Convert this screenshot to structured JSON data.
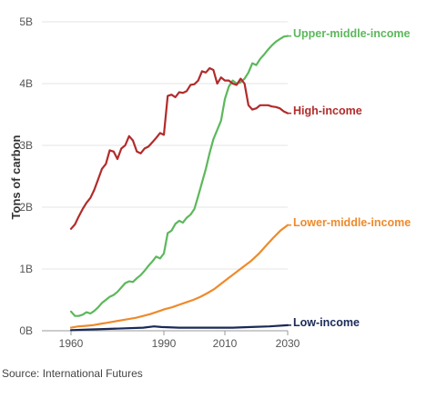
{
  "chart_data": {
    "type": "line",
    "xlim": [
      1960,
      2030
    ],
    "ylim": [
      0,
      5
    ],
    "x_ticks": [
      1960,
      1990,
      2010,
      2030
    ],
    "x_tick_labels": [
      "1960",
      "1990",
      "2010",
      "2030"
    ],
    "y_ticks": [
      0,
      1,
      2,
      3,
      4,
      5
    ],
    "y_tick_labels": [
      "0B",
      "1B",
      "2B",
      "3B",
      "4B",
      "5B"
    ],
    "ylabel": "Tons of carbon",
    "xlabel": "",
    "grid": "horizontal",
    "legend": "direct labels at line ends",
    "series": [
      {
        "name": "Upper-middle-income",
        "color": "#5cb85c",
        "points": [
          [
            1960,
            0.31
          ],
          [
            1961,
            0.24
          ],
          [
            1962,
            0.24
          ],
          [
            1963,
            0.26
          ],
          [
            1964,
            0.3
          ],
          [
            1965,
            0.28
          ],
          [
            1966,
            0.32
          ],
          [
            1967,
            0.38
          ],
          [
            1968,
            0.45
          ],
          [
            1969,
            0.5
          ],
          [
            1970,
            0.55
          ],
          [
            1971,
            0.58
          ],
          [
            1972,
            0.63
          ],
          [
            1973,
            0.7
          ],
          [
            1974,
            0.77
          ],
          [
            1975,
            0.8
          ],
          [
            1976,
            0.79
          ],
          [
            1977,
            0.85
          ],
          [
            1978,
            0.9
          ],
          [
            1979,
            0.97
          ],
          [
            1980,
            1.05
          ],
          [
            1981,
            1.12
          ],
          [
            1982,
            1.2
          ],
          [
            1983,
            1.17
          ],
          [
            1984,
            1.25
          ],
          [
            1985,
            1.58
          ],
          [
            1986,
            1.62
          ],
          [
            1987,
            1.73
          ],
          [
            1988,
            1.78
          ],
          [
            1989,
            1.75
          ],
          [
            1990,
            1.83
          ],
          [
            1991,
            1.88
          ],
          [
            1992,
            1.97
          ],
          [
            1993,
            2.18
          ],
          [
            1994,
            2.4
          ],
          [
            1995,
            2.62
          ],
          [
            1996,
            2.88
          ],
          [
            1997,
            3.1
          ],
          [
            1998,
            3.25
          ],
          [
            1999,
            3.4
          ],
          [
            2000,
            3.75
          ],
          [
            2001,
            3.95
          ],
          [
            2002,
            4.05
          ],
          [
            2003,
            4.0
          ],
          [
            2004,
            4.02
          ],
          [
            2005,
            4.08
          ],
          [
            2006,
            4.18
          ],
          [
            2007,
            4.33
          ],
          [
            2008,
            4.3
          ],
          [
            2009,
            4.4
          ],
          [
            2010,
            4.47
          ],
          [
            2011,
            4.55
          ],
          [
            2012,
            4.62
          ],
          [
            2013,
            4.68
          ],
          [
            2014,
            4.72
          ],
          [
            2015,
            4.76
          ],
          [
            2016,
            4.77
          ]
        ]
      },
      {
        "name": "High-income",
        "color": "#b22b2b",
        "points": [
          [
            1960,
            1.65
          ],
          [
            1961,
            1.72
          ],
          [
            1962,
            1.85
          ],
          [
            1963,
            1.97
          ],
          [
            1964,
            2.07
          ],
          [
            1965,
            2.15
          ],
          [
            1966,
            2.28
          ],
          [
            1967,
            2.45
          ],
          [
            1968,
            2.62
          ],
          [
            1969,
            2.7
          ],
          [
            1970,
            2.92
          ],
          [
            1971,
            2.9
          ],
          [
            1972,
            2.78
          ],
          [
            1973,
            2.95
          ],
          [
            1974,
            3.0
          ],
          [
            1975,
            3.15
          ],
          [
            1976,
            3.08
          ],
          [
            1977,
            2.9
          ],
          [
            1978,
            2.87
          ],
          [
            1979,
            2.95
          ],
          [
            1980,
            2.98
          ],
          [
            1981,
            3.05
          ],
          [
            1982,
            3.12
          ],
          [
            1983,
            3.2
          ],
          [
            1984,
            3.17
          ],
          [
            1985,
            3.8
          ],
          [
            1986,
            3.82
          ],
          [
            1987,
            3.78
          ],
          [
            1988,
            3.86
          ],
          [
            1989,
            3.85
          ],
          [
            1990,
            3.88
          ],
          [
            1991,
            3.98
          ],
          [
            1992,
            3.99
          ],
          [
            1993,
            4.05
          ],
          [
            1994,
            4.2
          ],
          [
            1995,
            4.18
          ],
          [
            1996,
            4.25
          ],
          [
            1997,
            4.22
          ],
          [
            1998,
            4.0
          ],
          [
            1999,
            4.1
          ],
          [
            2000,
            4.05
          ],
          [
            2001,
            4.05
          ],
          [
            2002,
            4.0
          ],
          [
            2003,
            3.98
          ],
          [
            2004,
            4.08
          ],
          [
            2005,
            4.0
          ],
          [
            2006,
            3.65
          ],
          [
            2007,
            3.58
          ],
          [
            2008,
            3.6
          ],
          [
            2009,
            3.65
          ],
          [
            2010,
            3.65
          ],
          [
            2011,
            3.65
          ],
          [
            2012,
            3.63
          ],
          [
            2013,
            3.62
          ],
          [
            2014,
            3.6
          ],
          [
            2015,
            3.55
          ],
          [
            2016,
            3.52
          ]
        ]
      },
      {
        "name": "Lower-middle-income",
        "color": "#ee8a2c",
        "points": [
          [
            1960,
            0.05
          ],
          [
            1962,
            0.07
          ],
          [
            1964,
            0.08
          ],
          [
            1966,
            0.09
          ],
          [
            1968,
            0.11
          ],
          [
            1970,
            0.13
          ],
          [
            1972,
            0.15
          ],
          [
            1974,
            0.17
          ],
          [
            1976,
            0.19
          ],
          [
            1978,
            0.21
          ],
          [
            1980,
            0.24
          ],
          [
            1982,
            0.27
          ],
          [
            1984,
            0.31
          ],
          [
            1986,
            0.35
          ],
          [
            1988,
            0.38
          ],
          [
            1990,
            0.42
          ],
          [
            1992,
            0.46
          ],
          [
            1994,
            0.5
          ],
          [
            1996,
            0.55
          ],
          [
            1998,
            0.61
          ],
          [
            2000,
            0.68
          ],
          [
            2002,
            0.77
          ],
          [
            2004,
            0.86
          ],
          [
            2006,
            0.95
          ],
          [
            2008,
            1.04
          ],
          [
            2010,
            1.13
          ],
          [
            2012,
            1.24
          ],
          [
            2014,
            1.37
          ],
          [
            2016,
            1.5
          ],
          [
            2018,
            1.62
          ],
          [
            2020,
            1.71
          ]
        ]
      },
      {
        "name": "Low-income",
        "color": "#1a2a57",
        "points": [
          [
            1960,
            0.01
          ],
          [
            1965,
            0.02
          ],
          [
            1970,
            0.03
          ],
          [
            1975,
            0.04
          ],
          [
            1980,
            0.05
          ],
          [
            1983,
            0.07
          ],
          [
            1985,
            0.06
          ],
          [
            1990,
            0.05
          ],
          [
            1995,
            0.05
          ],
          [
            2000,
            0.05
          ],
          [
            2005,
            0.05
          ],
          [
            2010,
            0.06
          ],
          [
            2015,
            0.07
          ],
          [
            2020,
            0.09
          ]
        ]
      }
    ]
  },
  "source_text": "Source: International Futures"
}
